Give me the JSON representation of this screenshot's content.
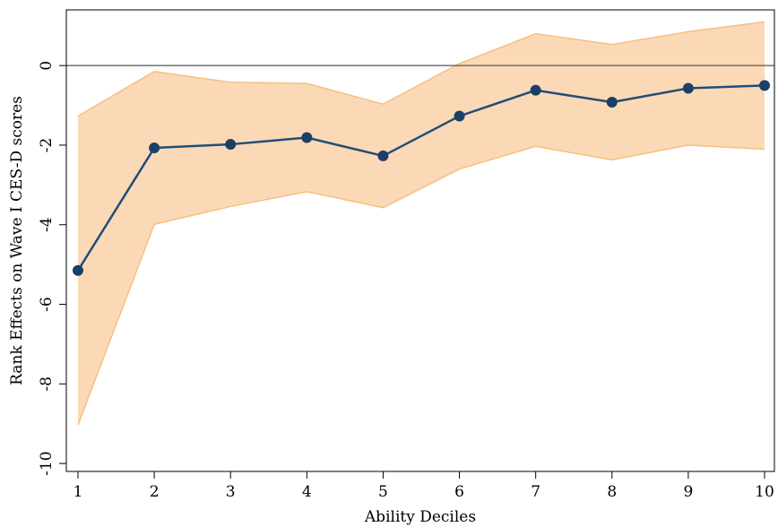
{
  "chart_data": {
    "type": "line",
    "title": "",
    "xlabel": "Ability Deciles",
    "ylabel": "Rank Effects on Wave I CES-D scores",
    "x": [
      1,
      2,
      3,
      4,
      5,
      6,
      7,
      8,
      9,
      10
    ],
    "xticks": [
      1,
      2,
      3,
      4,
      5,
      6,
      7,
      8,
      9,
      10
    ],
    "yticks": [
      0,
      -2,
      -4,
      -6,
      -8,
      -10
    ],
    "xlim": [
      1,
      10
    ],
    "ylim": [
      -10.2,
      1.4
    ],
    "series": [
      {
        "values": [
          -5.15,
          -2.07,
          -1.98,
          -1.81,
          -2.27,
          -1.27,
          -0.62,
          -0.92,
          -0.57,
          -0.5
        ],
        "ci_upper": [
          -1.27,
          -0.15,
          -0.42,
          -0.45,
          -0.97,
          0.05,
          0.8,
          0.53,
          0.85,
          1.1
        ],
        "ci_lower": [
          -9.03,
          -3.99,
          -3.54,
          -3.17,
          -3.57,
          -2.6,
          -2.03,
          -2.37,
          -2.0,
          -2.1
        ]
      }
    ],
    "reference_line_y": 0,
    "grid": false,
    "legend": "none",
    "colors": {
      "line": "#1f4e79",
      "marker": "#1c3f66",
      "ci_fill": "#fcd9b6",
      "ci_edge": "#f5bf82",
      "zero_line": "#555555",
      "axes": "#000000"
    }
  }
}
